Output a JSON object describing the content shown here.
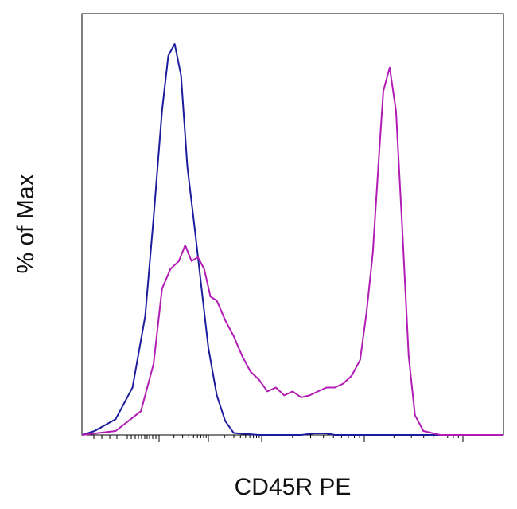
{
  "chart_data": {
    "type": "line",
    "chart_kind": "flow cytometry histogram overlay",
    "xlabel": "CD45R PE",
    "ylabel": "% of Max",
    "x_scale": "logicle (biexponential)",
    "xlim": [
      -0.2,
      1.0
    ],
    "ylim": [
      0,
      1.05
    ],
    "tick_labels_shown": false,
    "grid": false,
    "legend": "none",
    "series": [
      {
        "color": "#1c1c9c",
        "points": [
          [
            0.0,
            0.0
          ],
          [
            0.03,
            0.01
          ],
          [
            0.08,
            0.04
          ],
          [
            0.12,
            0.12
          ],
          [
            0.15,
            0.3
          ],
          [
            0.17,
            0.55
          ],
          [
            0.19,
            0.82
          ],
          [
            0.205,
            0.96
          ],
          [
            0.22,
            0.99
          ],
          [
            0.235,
            0.91
          ],
          [
            0.25,
            0.68
          ],
          [
            0.27,
            0.5
          ],
          [
            0.285,
            0.36
          ],
          [
            0.3,
            0.22
          ],
          [
            0.32,
            0.1
          ],
          [
            0.34,
            0.035
          ],
          [
            0.36,
            0.005
          ],
          [
            0.42,
            0.0
          ],
          [
            0.52,
            0.0
          ],
          [
            0.55,
            0.004
          ],
          [
            0.58,
            0.004
          ],
          [
            0.6,
            0.0
          ],
          [
            0.75,
            0.0
          ],
          [
            1.0,
            0.0
          ]
        ]
      },
      {
        "color": "#b01cb4",
        "points": [
          [
            0.0,
            0.0
          ],
          [
            0.08,
            0.01
          ],
          [
            0.14,
            0.06
          ],
          [
            0.17,
            0.18
          ],
          [
            0.19,
            0.37
          ],
          [
            0.21,
            0.42
          ],
          [
            0.23,
            0.44
          ],
          [
            0.245,
            0.48
          ],
          [
            0.26,
            0.44
          ],
          [
            0.275,
            0.45
          ],
          [
            0.29,
            0.42
          ],
          [
            0.305,
            0.35
          ],
          [
            0.32,
            0.34
          ],
          [
            0.34,
            0.29
          ],
          [
            0.36,
            0.25
          ],
          [
            0.38,
            0.2
          ],
          [
            0.4,
            0.16
          ],
          [
            0.42,
            0.14
          ],
          [
            0.44,
            0.11
          ],
          [
            0.46,
            0.12
          ],
          [
            0.48,
            0.1
          ],
          [
            0.5,
            0.11
          ],
          [
            0.52,
            0.095
          ],
          [
            0.54,
            0.1
          ],
          [
            0.56,
            0.11
          ],
          [
            0.58,
            0.12
          ],
          [
            0.6,
            0.12
          ],
          [
            0.62,
            0.13
          ],
          [
            0.64,
            0.15
          ],
          [
            0.66,
            0.19
          ],
          [
            0.675,
            0.31
          ],
          [
            0.69,
            0.46
          ],
          [
            0.705,
            0.71
          ],
          [
            0.715,
            0.87
          ],
          [
            0.73,
            0.93
          ],
          [
            0.745,
            0.82
          ],
          [
            0.76,
            0.52
          ],
          [
            0.775,
            0.2
          ],
          [
            0.79,
            0.05
          ],
          [
            0.81,
            0.01
          ],
          [
            0.85,
            0.0
          ],
          [
            1.0,
            0.0
          ]
        ]
      }
    ]
  }
}
